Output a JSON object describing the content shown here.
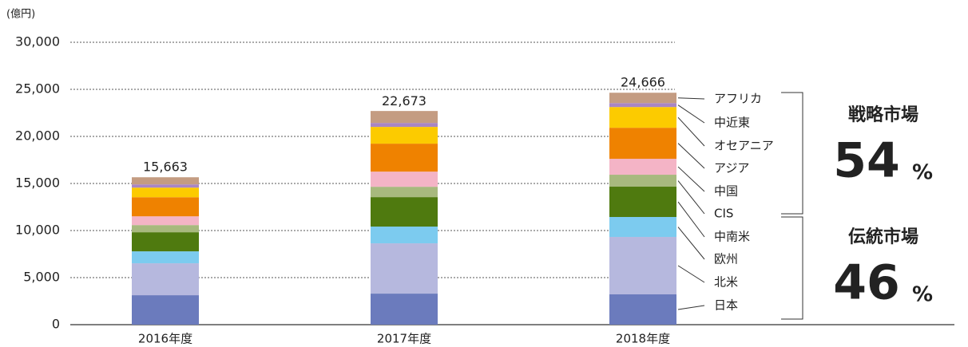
{
  "chart_data": {
    "type": "stacked_bar",
    "unit_label": "(億円)",
    "categories": [
      "2016年度",
      "2017年度",
      "2018年度"
    ],
    "series": [
      {
        "name": "日本",
        "color": "#6b7bbd",
        "values": [
          3130,
          3300,
          3220
        ]
      },
      {
        "name": "北米",
        "color": "#b6b8de",
        "values": [
          3390,
          5340,
          6100
        ]
      },
      {
        "name": "欧州",
        "color": "#7ccbef",
        "values": [
          1270,
          1780,
          2120
        ]
      },
      {
        "name": "中南米",
        "color": "#4f7a0f",
        "values": [
          2030,
          3130,
          3220
        ]
      },
      {
        "name": "CIS",
        "color": "#a8b97e",
        "values": [
          760,
          1100,
          1270
        ]
      },
      {
        "name": "中国",
        "color": "#f4b4c6",
        "values": [
          930,
          1610,
          1690
        ]
      },
      {
        "name": "アジア",
        "color": "#ef8200",
        "values": [
          2030,
          2970,
          3300
        ]
      },
      {
        "name": "オセアニア",
        "color": "#fccb00",
        "values": [
          1020,
          1780,
          2200
        ]
      },
      {
        "name": "中近東",
        "color": "#a986c3",
        "values": [
          340,
          420,
          420
        ]
      },
      {
        "name": "アフリカ",
        "color": "#c49c82",
        "values": [
          760,
          1270,
          1100
        ]
      }
    ],
    "totals": [
      15663,
      22673,
      24666
    ],
    "total_labels": [
      "15,663",
      "22,673",
      "24,666"
    ],
    "ylim": [
      0,
      30000
    ],
    "yticks": [
      0,
      {
        "value": 5000,
        "label": "5,000"
      },
      {
        "value": 10000,
        "label": "10,000"
      },
      {
        "value": 15000,
        "label": "15,000"
      },
      {
        "value": 20000,
        "label": "20,000"
      },
      {
        "value": 25000,
        "label": "25,000"
      },
      {
        "value": 30000,
        "label": "30,000"
      }
    ],
    "grid": true,
    "share_labels": [
      {
        "name": "戦略市場",
        "value": "54",
        "unit": "%"
      },
      {
        "name": "伝統市場",
        "value": "46",
        "unit": "%"
      }
    ]
  }
}
